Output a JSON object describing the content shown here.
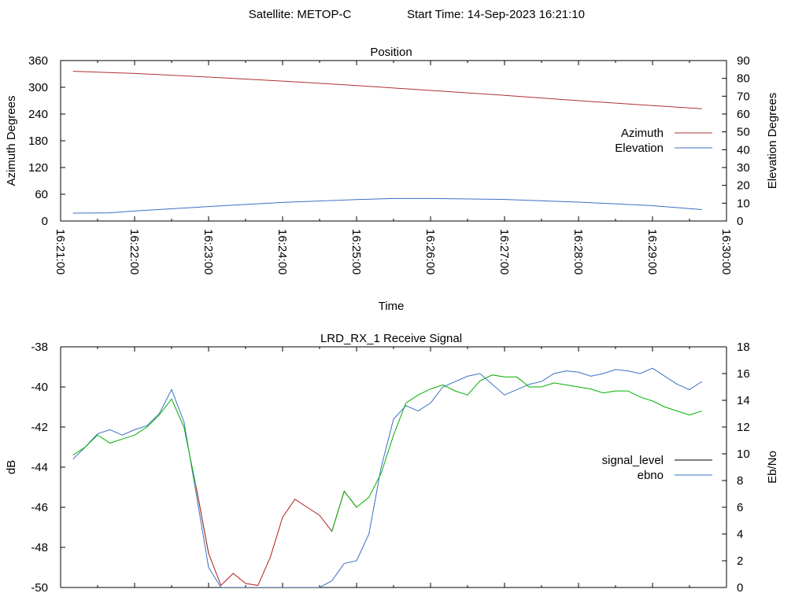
{
  "header": {
    "satellite_label": "Satellite: METOP-C",
    "start_time_label": "Start Time: 14-Sep-2023 16:21:10"
  },
  "colors": {
    "azimuth": "#b03030",
    "elevation": "#3a6fc4",
    "signal_level": "#000000",
    "ebno": "#3a6fc4",
    "signal_green": "#00b000",
    "signal_red": "#b02020",
    "axis": "#000000"
  },
  "chart_data": [
    {
      "type": "line",
      "title": "Position",
      "xlabel": "Time",
      "ylabel": "Azimuth Degrees",
      "y2label": "Elevation Degrees",
      "xlim": [
        "16:21:00",
        "16:30:00"
      ],
      "xticks": [
        "16:21:00",
        "16:22:00",
        "16:23:00",
        "16:24:00",
        "16:25:00",
        "16:26:00",
        "16:27:00",
        "16:28:00",
        "16:29:00",
        "16:30:00"
      ],
      "ylim": [
        0,
        360
      ],
      "yticks": [
        "0",
        "60",
        "120",
        "180",
        "240",
        "300",
        "360"
      ],
      "y2lim": [
        0,
        90
      ],
      "y2ticks": [
        "0",
        "10",
        "20",
        "30",
        "40",
        "50",
        "60",
        "70",
        "80",
        "90"
      ],
      "legend_position": "right",
      "series": [
        {
          "name": "Azimuth",
          "axis": "y",
          "x": [
            "16:21:10",
            "16:22:00",
            "16:23:00",
            "16:24:00",
            "16:25:00",
            "16:26:00",
            "16:27:00",
            "16:28:00",
            "16:29:00",
            "16:29:40"
          ],
          "values": [
            336,
            331,
            323,
            314,
            304,
            293,
            282,
            270,
            259,
            252
          ]
        },
        {
          "name": "Elevation",
          "axis": "y2",
          "x": [
            "16:21:10",
            "16:21:40",
            "16:22:00",
            "16:23:00",
            "16:24:00",
            "16:25:00",
            "16:25:30",
            "16:26:00",
            "16:27:00",
            "16:28:00",
            "16:29:00",
            "16:29:40"
          ],
          "values": [
            4.4,
            4.6,
            5.6,
            8.1,
            10.4,
            12.0,
            12.6,
            12.6,
            12.1,
            10.6,
            8.6,
            6.4
          ]
        }
      ]
    },
    {
      "type": "line",
      "title": "LRD_RX_1 Receive Signal",
      "ylabel": "dB",
      "y2label": "Eb/No",
      "ylim": [
        -50,
        -38
      ],
      "yticks": [
        "-50",
        "-48",
        "-46",
        "-44",
        "-42",
        "-40",
        "-38"
      ],
      "y2lim": [
        0,
        18
      ],
      "y2ticks": [
        "0",
        "2",
        "4",
        "6",
        "8",
        "10",
        "12",
        "14",
        "16",
        "18"
      ],
      "xlim": [
        "16:21:00",
        "16:30:00"
      ],
      "legend_position": "right",
      "series": [
        {
          "name": "signal_level",
          "axis": "y",
          "x": [
            "16:21:10",
            "16:21:20",
            "16:21:30",
            "16:21:40",
            "16:21:50",
            "16:22:00",
            "16:22:10",
            "16:22:20",
            "16:22:30",
            "16:22:40",
            "16:22:50",
            "16:23:00",
            "16:23:10",
            "16:23:20",
            "16:23:30",
            "16:23:40",
            "16:23:50",
            "16:24:00",
            "16:24:10",
            "16:24:20",
            "16:24:30",
            "16:24:40",
            "16:24:50",
            "16:25:00",
            "16:25:10",
            "16:25:20",
            "16:25:30",
            "16:25:40",
            "16:25:50",
            "16:26:00",
            "16:26:10",
            "16:26:20",
            "16:26:30",
            "16:26:40",
            "16:26:50",
            "16:27:00",
            "16:27:10",
            "16:27:20",
            "16:27:30",
            "16:27:40",
            "16:27:50",
            "16:28:00",
            "16:28:10",
            "16:28:20",
            "16:28:30",
            "16:28:40",
            "16:28:50",
            "16:29:00",
            "16:29:10",
            "16:29:20",
            "16:29:30",
            "16:29:40"
          ],
          "values": [
            -43.4,
            -43.0,
            -42.4,
            -42.8,
            -42.6,
            -42.4,
            -42.0,
            -41.4,
            -40.6,
            -42.0,
            -45.0,
            -48.3,
            -49.9,
            -49.3,
            -49.8,
            -49.9,
            -48.5,
            -46.5,
            -45.6,
            -46.0,
            -46.4,
            -47.2,
            -45.2,
            -46.0,
            -45.5,
            -44.3,
            -42.4,
            -40.8,
            -40.4,
            -40.1,
            -39.9,
            -40.2,
            -40.4,
            -39.7,
            -39.4,
            -39.5,
            -39.5,
            -40.0,
            -40.0,
            -39.8,
            -39.9,
            -40.0,
            -40.1,
            -40.3,
            -40.2,
            -40.2,
            -40.5,
            -40.7,
            -41.0,
            -41.2,
            -41.4,
            -41.2
          ],
          "color_ranges": [
            {
              "from": "16:21:10",
              "to": "16:22:52",
              "color_key": "signal_green"
            },
            {
              "from": "16:22:52",
              "to": "16:24:50",
              "color_key": "signal_red"
            },
            {
              "from": "16:24:50",
              "to": "16:29:40",
              "color_key": "signal_green"
            }
          ]
        },
        {
          "name": "ebno",
          "axis": "y2",
          "x": [
            "16:21:10",
            "16:21:20",
            "16:21:30",
            "16:21:40",
            "16:21:50",
            "16:22:00",
            "16:22:10",
            "16:22:20",
            "16:22:30",
            "16:22:40",
            "16:22:50",
            "16:23:00",
            "16:23:10",
            "16:23:20",
            "16:23:30",
            "16:23:40",
            "16:23:50",
            "16:24:00",
            "16:24:10",
            "16:24:20",
            "16:24:30",
            "16:24:40",
            "16:24:50",
            "16:25:00",
            "16:25:10",
            "16:25:20",
            "16:25:30",
            "16:25:40",
            "16:25:50",
            "16:26:00",
            "16:26:10",
            "16:26:20",
            "16:26:30",
            "16:26:40",
            "16:26:50",
            "16:27:00",
            "16:27:10",
            "16:27:20",
            "16:27:30",
            "16:27:40",
            "16:27:50",
            "16:28:00",
            "16:28:10",
            "16:28:20",
            "16:28:30",
            "16:28:40",
            "16:28:50",
            "16:29:00",
            "16:29:10",
            "16:29:20",
            "16:29:30",
            "16:29:40"
          ],
          "values": [
            9.6,
            10.5,
            11.5,
            11.8,
            11.4,
            11.8,
            12.1,
            13.0,
            14.8,
            12.4,
            7.0,
            1.5,
            0.0,
            0.0,
            0.0,
            0.0,
            0.0,
            0.0,
            0.0,
            0.0,
            0.0,
            0.5,
            1.8,
            2.0,
            4.0,
            9.0,
            12.6,
            13.6,
            13.2,
            13.8,
            15.0,
            15.4,
            15.8,
            16.0,
            15.2,
            14.4,
            14.8,
            15.2,
            15.4,
            16.0,
            16.2,
            16.1,
            15.8,
            16.0,
            16.3,
            16.2,
            16.0,
            16.4,
            15.8,
            15.2,
            14.8,
            15.4
          ]
        }
      ]
    }
  ]
}
